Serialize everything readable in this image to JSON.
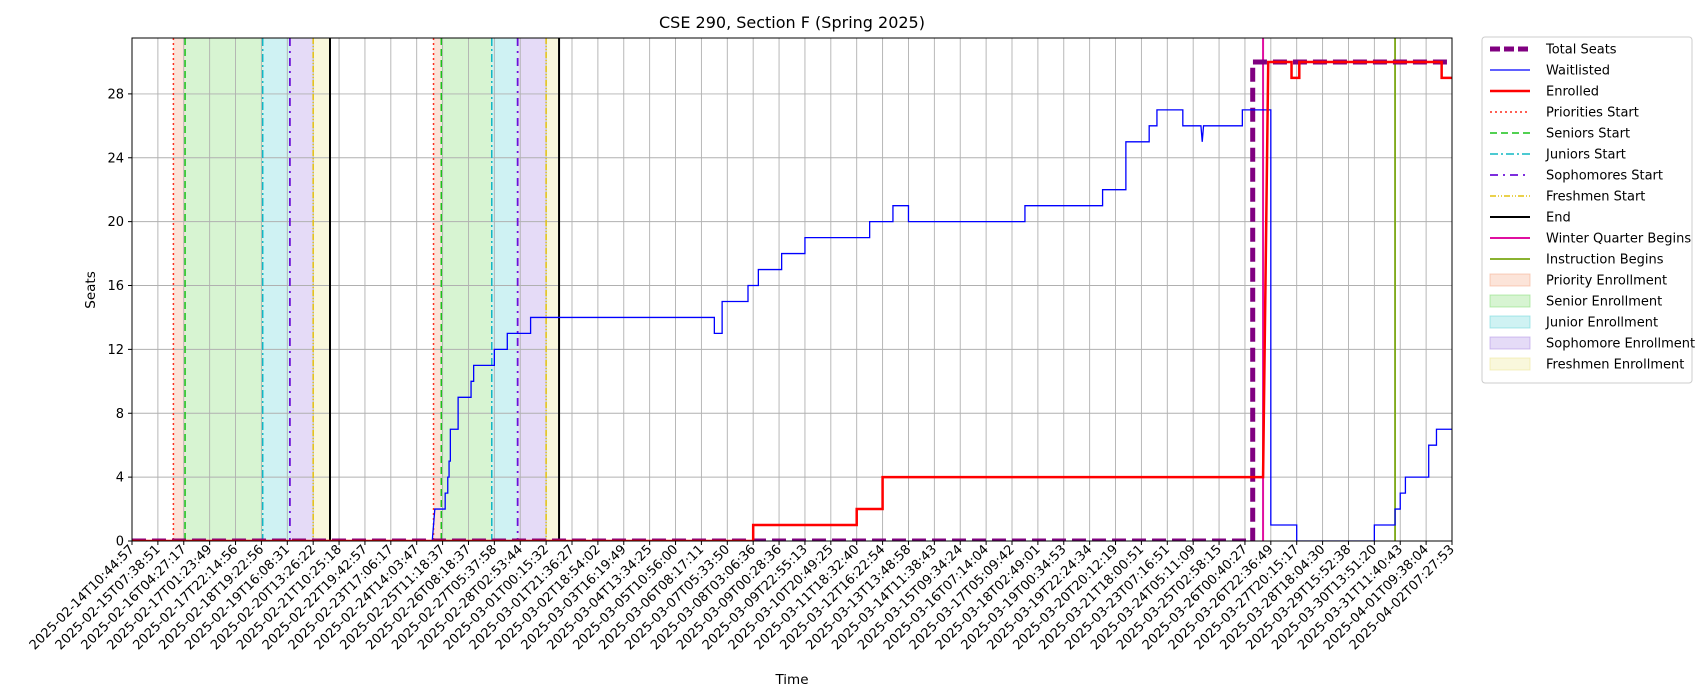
{
  "chart_data": {
    "type": "line",
    "title": "CSE 290, Section F (Spring 2025)",
    "xlabel": "Time",
    "ylabel": "Seats",
    "ylim": [
      0,
      31.5
    ],
    "y_ticks": [
      0,
      4,
      8,
      12,
      16,
      20,
      24,
      28
    ],
    "grid": true,
    "legend_position": "outside-right-top",
    "x_tick_labels": [
      "2025-02-14T10:44:57",
      "2025-02-15T07:38:51",
      "2025-02-16T04:27:17",
      "2025-02-17T01:23:49",
      "2025-02-17T22:14:56",
      "2025-02-18T19:22:56",
      "2025-02-19T16:08:31",
      "2025-02-20T13:26:22",
      "2025-02-21T10:25:18",
      "2025-02-22T19:42:57",
      "2025-02-23T17:06:17",
      "2025-02-24T14:03:47",
      "2025-02-25T11:18:37",
      "2025-02-26T08:18:37",
      "2025-02-27T05:37:58",
      "2025-02-28T02:53:44",
      "2025-03-01T00:15:32",
      "2025-03-01T21:36:27",
      "2025-03-02T18:54:02",
      "2025-03-03T16:19:49",
      "2025-03-04T13:34:25",
      "2025-03-05T10:56:00",
      "2025-03-06T08:17:11",
      "2025-03-07T05:33:50",
      "2025-03-08T03:06:36",
      "2025-03-09T00:28:36",
      "2025-03-09T22:55:13",
      "2025-03-10T20:49:25",
      "2025-03-11T18:32:40",
      "2025-03-12T16:22:54",
      "2025-03-13T13:48:58",
      "2025-03-14T11:38:43",
      "2025-03-15T09:34:24",
      "2025-03-16T07:14:04",
      "2025-03-17T05:09:42",
      "2025-03-18T02:49:01",
      "2025-03-19T00:34:53",
      "2025-03-19T22:24:34",
      "2025-03-20T20:12:19",
      "2025-03-21T18:00:51",
      "2025-03-23T07:16:51",
      "2025-03-24T05:11:09",
      "2025-03-25T02:58:15",
      "2025-03-26T00:40:27",
      "2025-03-26T22:36:49",
      "2025-03-27T20:15:17",
      "2025-03-28T18:04:30",
      "2025-03-29T15:52:38",
      "2025-03-30T13:51:20",
      "2025-03-31T11:40:43",
      "2025-04-01T09:38:04",
      "2025-04-02T07:27:53"
    ],
    "phases": [
      {
        "name": "Priority Enrollment",
        "color": "#f4a582",
        "spans": [
          [
            1.6,
            2.05
          ],
          [
            11.65,
            11.95
          ]
        ]
      },
      {
        "name": "Senior Enrollment",
        "color": "#7bd96b",
        "spans": [
          [
            2.05,
            5.05
          ],
          [
            11.95,
            13.9
          ]
        ]
      },
      {
        "name": "Junior Enrollment",
        "color": "#5fd3d8",
        "spans": [
          [
            5.05,
            6.1
          ],
          [
            13.9,
            14.9
          ]
        ]
      },
      {
        "name": "Sophomore Enrollment",
        "color": "#a987e3",
        "spans": [
          [
            6.1,
            7.0
          ],
          [
            14.9,
            16.0
          ]
        ]
      },
      {
        "name": "Freshmen Enrollment",
        "color": "#ece48a",
        "spans": [
          [
            7.0,
            7.65
          ],
          [
            16.0,
            16.5
          ]
        ]
      }
    ],
    "vlines": [
      {
        "name": "Priorities Start",
        "color": "#ff2a1a",
        "dash": "2,3",
        "width": 1.5,
        "x": [
          1.6,
          11.65
        ]
      },
      {
        "name": "Seniors Start",
        "color": "#19c219",
        "dash": "7,4",
        "width": 1.5,
        "x": [
          2.05,
          11.95
        ]
      },
      {
        "name": "Juniors Start",
        "color": "#11b8c4",
        "dash": "8,3,2,3",
        "width": 1.5,
        "x": [
          5.05,
          13.9
        ]
      },
      {
        "name": "Sophomores Start",
        "color": "#6b10d9",
        "dash": "8,5,2,5",
        "width": 1.8,
        "x": [
          6.1,
          14.9
        ]
      },
      {
        "name": "Freshmen Start",
        "color": "#e3c210",
        "dash": "6,2,1,2,1,2",
        "width": 1.5,
        "x": [
          7.0,
          16.0
        ]
      },
      {
        "name": "End",
        "color": "#000000",
        "dash": "",
        "width": 2,
        "x": [
          7.65,
          16.5
        ]
      },
      {
        "name": "Winter Quarter Begins",
        "color": "#e00fa0",
        "dash": "",
        "width": 2,
        "x": [
          43.7
        ]
      },
      {
        "name": "Instruction Begins",
        "color": "#7aa712",
        "dash": "",
        "width": 1.8,
        "x": [
          48.8
        ]
      }
    ],
    "series": [
      {
        "name": "Total Seats",
        "color": "#800080",
        "width": 5,
        "dash": "14,6",
        "points": [
          [
            0,
            0
          ],
          [
            43.3,
            0
          ],
          [
            43.3,
            30
          ],
          [
            51.8,
            30
          ]
        ]
      },
      {
        "name": "Waitlisted",
        "color": "#0000ff",
        "width": 1.3,
        "dash": "",
        "points": [
          [
            0,
            0
          ],
          [
            11.6,
            0
          ],
          [
            11.7,
            2
          ],
          [
            12.1,
            2
          ],
          [
            12.1,
            3
          ],
          [
            12.2,
            3
          ],
          [
            12.2,
            4
          ],
          [
            12.25,
            4
          ],
          [
            12.25,
            5
          ],
          [
            12.3,
            5
          ],
          [
            12.3,
            7
          ],
          [
            12.6,
            7
          ],
          [
            12.6,
            9
          ],
          [
            13.1,
            9
          ],
          [
            13.1,
            10
          ],
          [
            13.2,
            10
          ],
          [
            13.2,
            11
          ],
          [
            14.0,
            11
          ],
          [
            14.0,
            12
          ],
          [
            14.5,
            12
          ],
          [
            14.5,
            13
          ],
          [
            15.4,
            13
          ],
          [
            15.4,
            14
          ],
          [
            22.5,
            14
          ],
          [
            22.5,
            13
          ],
          [
            22.8,
            13
          ],
          [
            22.8,
            15
          ],
          [
            23.8,
            15
          ],
          [
            23.8,
            16
          ],
          [
            24.2,
            16
          ],
          [
            24.2,
            17
          ],
          [
            25.1,
            17
          ],
          [
            25.1,
            18
          ],
          [
            26.0,
            18
          ],
          [
            26.0,
            19
          ],
          [
            28.5,
            19
          ],
          [
            28.5,
            20
          ],
          [
            29.4,
            20
          ],
          [
            29.4,
            21
          ],
          [
            30.0,
            21
          ],
          [
            30.0,
            20
          ],
          [
            34.5,
            20
          ],
          [
            34.5,
            21
          ],
          [
            37.5,
            21
          ],
          [
            37.5,
            22
          ],
          [
            38.4,
            22
          ],
          [
            38.4,
            25
          ],
          [
            39.3,
            25
          ],
          [
            39.3,
            26
          ],
          [
            39.6,
            26
          ],
          [
            39.6,
            27
          ],
          [
            40.6,
            27
          ],
          [
            40.6,
            26
          ],
          [
            41.3,
            26
          ],
          [
            41.35,
            25
          ],
          [
            41.4,
            26
          ],
          [
            42.9,
            26
          ],
          [
            42.9,
            27
          ],
          [
            44.0,
            27
          ],
          [
            44.0,
            1
          ],
          [
            45.0,
            1
          ],
          [
            45.0,
            0
          ],
          [
            48.0,
            0
          ],
          [
            48.0,
            1
          ],
          [
            48.8,
            1
          ],
          [
            48.8,
            2
          ],
          [
            49.0,
            2
          ],
          [
            49.0,
            3
          ],
          [
            49.2,
            3
          ],
          [
            49.2,
            4
          ],
          [
            50.1,
            4
          ],
          [
            50.1,
            6
          ],
          [
            50.4,
            6
          ],
          [
            50.4,
            7
          ],
          [
            51.8,
            7
          ]
        ]
      },
      {
        "name": "Enrolled",
        "color": "#ff0000",
        "width": 2.5,
        "dash": "",
        "points": [
          [
            0,
            0
          ],
          [
            24.0,
            0
          ],
          [
            24.0,
            1
          ],
          [
            28.0,
            1
          ],
          [
            28.0,
            2
          ],
          [
            29.0,
            2
          ],
          [
            29.0,
            4
          ],
          [
            43.7,
            4
          ],
          [
            43.9,
            30
          ],
          [
            44.8,
            30
          ],
          [
            44.8,
            29
          ],
          [
            45.1,
            29
          ],
          [
            45.1,
            30
          ],
          [
            50.6,
            30
          ],
          [
            50.6,
            29
          ],
          [
            51.8,
            29
          ]
        ]
      }
    ],
    "legend": [
      {
        "label": "Total Seats",
        "kind": "line",
        "color": "#800080",
        "width": 5,
        "dash": "10,4"
      },
      {
        "label": "Waitlisted",
        "kind": "line",
        "color": "#0000ff",
        "width": 1.3,
        "dash": ""
      },
      {
        "label": "Enrolled",
        "kind": "line",
        "color": "#ff0000",
        "width": 2.5,
        "dash": ""
      },
      {
        "label": "Priorities Start",
        "kind": "line",
        "color": "#ff2a1a",
        "width": 1.5,
        "dash": "2,3"
      },
      {
        "label": "Seniors Start",
        "kind": "line",
        "color": "#19c219",
        "width": 1.5,
        "dash": "7,4"
      },
      {
        "label": "Juniors Start",
        "kind": "line",
        "color": "#11b8c4",
        "width": 1.5,
        "dash": "8,3,2,3"
      },
      {
        "label": "Sophomores Start",
        "kind": "line",
        "color": "#6b10d9",
        "width": 1.8,
        "dash": "8,5,2,5"
      },
      {
        "label": "Freshmen Start",
        "kind": "line",
        "color": "#e3c210",
        "width": 1.5,
        "dash": "6,2,1,2,1,2"
      },
      {
        "label": "End",
        "kind": "line",
        "color": "#000000",
        "width": 2,
        "dash": ""
      },
      {
        "label": "Winter Quarter Begins",
        "kind": "line",
        "color": "#e00fa0",
        "width": 2,
        "dash": ""
      },
      {
        "label": "Instruction Begins",
        "kind": "line",
        "color": "#7aa712",
        "width": 1.8,
        "dash": ""
      },
      {
        "label": "Priority Enrollment",
        "kind": "patch",
        "color": "#f4a582"
      },
      {
        "label": "Senior Enrollment",
        "kind": "patch",
        "color": "#7bd96b"
      },
      {
        "label": "Junior Enrollment",
        "kind": "patch",
        "color": "#5fd3d8"
      },
      {
        "label": "Sophomore Enrollment",
        "kind": "patch",
        "color": "#a987e3"
      },
      {
        "label": "Freshmen Enrollment",
        "kind": "patch",
        "color": "#ece48a"
      }
    ]
  }
}
